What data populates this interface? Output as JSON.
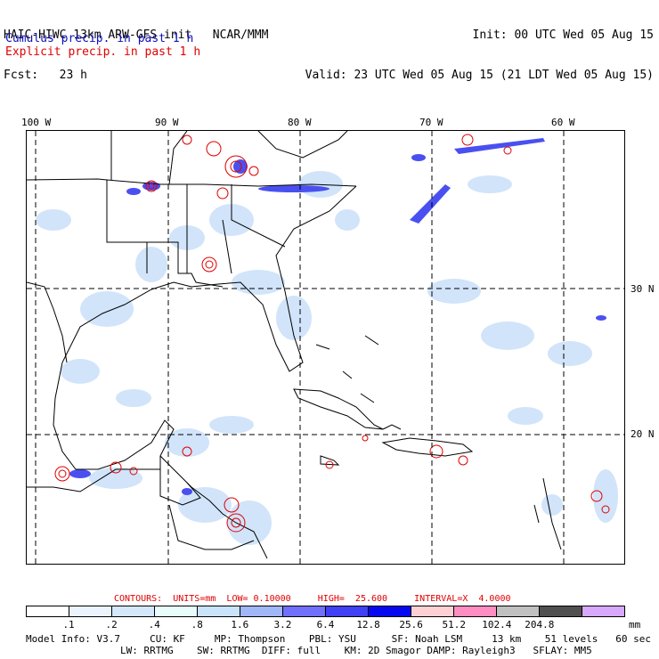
{
  "header": {
    "model_line": "HAIC-HIWC 13km ARW-GFS init   NCAR/MMM",
    "fcst_line": "Fcst:   23 h",
    "init_line": "Init: 00 UTC Wed 05 Aug 15",
    "valid_line": "Valid: 23 UTC Wed 05 Aug 15 (21 LDT Wed 05 Aug 15)",
    "cumulus_label": "Cumulus precip. in past 1 h",
    "explicit_label": "Explicit precip. in past 1 h"
  },
  "map": {
    "longitude_labels": [
      "100 W",
      "90 W",
      "80 W",
      "70 W",
      "60 W"
    ],
    "latitude_labels": [
      "30 N",
      "20 N"
    ]
  },
  "contours": {
    "text": "CONTOURS:  UNITS=mm  LOW= 0.10000     HIGH=  25.600     INTERVAL=X  4.0000"
  },
  "legend": {
    "tick_values": [
      ".1",
      ".2",
      ".4",
      ".8",
      "1.6",
      "3.2",
      "6.4",
      "12.8",
      "25.6",
      "51.2",
      "102.4",
      "204.8"
    ],
    "units": "mm",
    "colors": [
      "#ffffff",
      "#ebf3ff",
      "#d4e7fb",
      "#e8fcfc",
      "#c9e3fb",
      "#a0b8f8",
      "#7070fc",
      "#4040f4",
      "#0808f0",
      "#fdd0d4",
      "#fc8ec2",
      "#c0c0c0",
      "#505050",
      "#d8a8fc"
    ]
  },
  "model_info": {
    "line1": "Model Info: V3.7     CU: KF     MP: Thompson    PBL: YSU      SF: Noah LSM     13 km    51 levels   60 sec",
    "line2": "                LW: RRTMG    SW: RRTMG  DIFF: full    KM: 2D Smagor DAMP: Rayleigh3   SFLAY: MM5"
  }
}
